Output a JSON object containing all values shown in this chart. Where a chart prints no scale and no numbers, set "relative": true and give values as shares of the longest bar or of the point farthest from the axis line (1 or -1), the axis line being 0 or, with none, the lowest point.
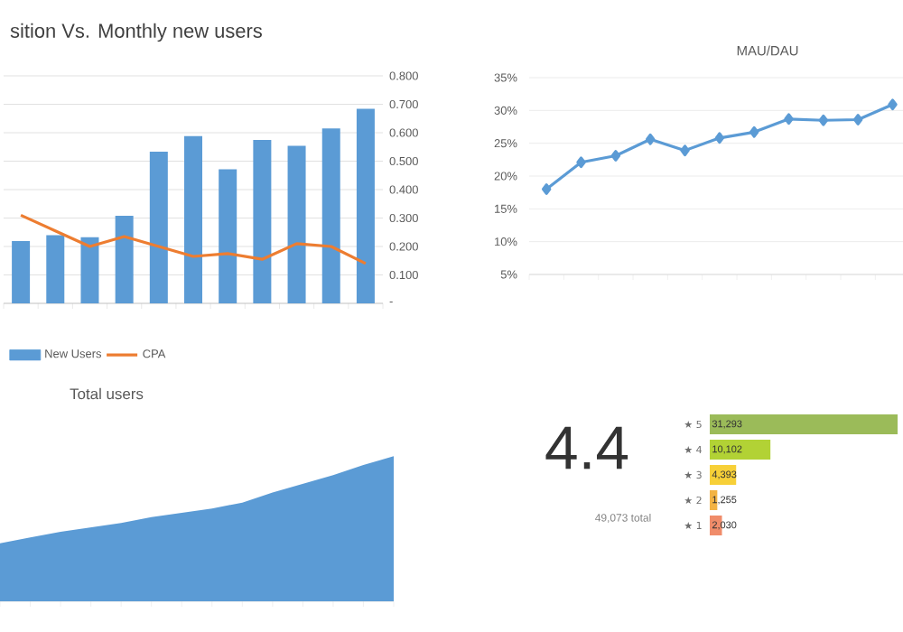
{
  "chart_data": [
    {
      "type": "bar",
      "title": "sition Vs. Monthly new users",
      "categories": [
        null,
        null,
        null,
        null,
        null,
        null,
        null,
        null,
        null,
        null,
        null
      ],
      "relative": true,
      "grid": true,
      "legend": "bottom",
      "series": [
        {
          "name": "New Users",
          "color": "#5b9bd5",
          "values": [
            0.32,
            0.35,
            0.34,
            0.45,
            0.78,
            0.86,
            0.69,
            0.84,
            0.81,
            0.9,
            1
          ]
        },
        {
          "name": "CPA",
          "type": "line",
          "axis": "y2",
          "color": "#ed7d31",
          "values": [
            0.31,
            0.255,
            0.2,
            0.235,
            0.2,
            0.165,
            0.175,
            0.155,
            0.21,
            0.2,
            0.14
          ]
        }
      ],
      "y2lim": [
        0,
        0.8
      ],
      "y2ticks": [
        {
          "value": 0,
          "label": "-"
        },
        {
          "value": 0.1,
          "label": "0.100"
        },
        {
          "value": 0.2,
          "label": "0.200"
        },
        {
          "value": 0.3,
          "label": "0.300"
        },
        {
          "value": 0.4,
          "label": "0.400"
        },
        {
          "value": 0.5,
          "label": "0.500"
        },
        {
          "value": 0.6,
          "label": "0.600"
        },
        {
          "value": 0.7,
          "label": "0.700"
        },
        {
          "value": 0.8,
          "label": "0.800"
        }
      ]
    },
    {
      "type": "line",
      "title": "MAU/DAU",
      "categories": [
        null,
        null,
        null,
        null,
        null,
        null,
        null,
        null,
        null,
        null,
        null
      ],
      "color": "#5b9bd5",
      "marker": "diamond",
      "grid": "y",
      "values": [
        18.0,
        22.1,
        23.1,
        25.6,
        23.9,
        25.8,
        26.7,
        28.7,
        28.5,
        28.6,
        30.9
      ],
      "ylim": [
        5,
        35
      ],
      "yticks": [
        {
          "value": 5,
          "label": "5%"
        },
        {
          "value": 10,
          "label": "10%"
        },
        {
          "value": 15,
          "label": "15%"
        },
        {
          "value": 20,
          "label": "20%"
        },
        {
          "value": 25,
          "label": "25%"
        },
        {
          "value": 30,
          "label": "30%"
        },
        {
          "value": 35,
          "label": "35%"
        }
      ]
    },
    {
      "type": "area",
      "title": "Total users",
      "categories": [
        null,
        null,
        null,
        null,
        null,
        null,
        null,
        null,
        null,
        null,
        null,
        null,
        null,
        null
      ],
      "relative": true,
      "color": "#5b9bd5",
      "values": [
        0.4,
        0.44,
        0.48,
        0.51,
        0.54,
        0.58,
        0.61,
        0.64,
        0.68,
        0.75,
        0.81,
        0.87,
        0.94,
        1
      ]
    },
    {
      "type": "bar",
      "orientation": "horizontal",
      "categories": [
        "★ 5",
        "★ 4",
        "★ 3",
        "★ 2",
        "★ 1"
      ],
      "values": [
        31293,
        10102,
        4393,
        1255,
        2030
      ],
      "colors": [
        "#9bbb59",
        "#b2d235",
        "#f7d038",
        "#f3b343",
        "#f08c6a"
      ],
      "value_labels": [
        "31,293",
        "10,102",
        "4,393",
        "1,255",
        "2,030"
      ],
      "annotations": [
        "4.4",
        "49,073 total"
      ]
    }
  ]
}
